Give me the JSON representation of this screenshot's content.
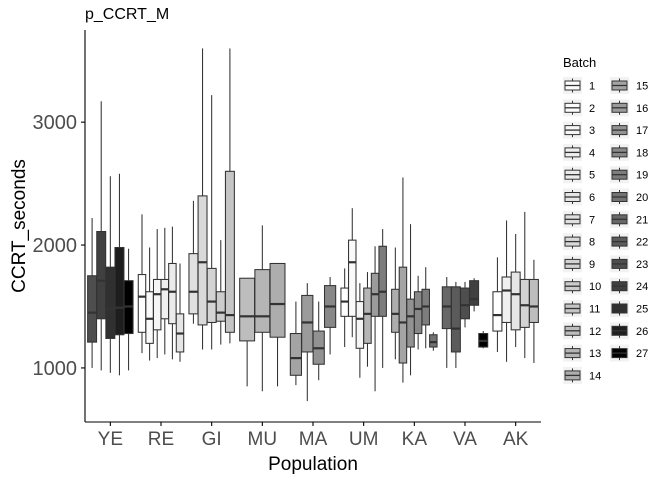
{
  "chart_data": {
    "type": "boxplot",
    "title": "p_CCRT_M",
    "xlabel": "Population",
    "ylabel": "CCRT_seconds",
    "ylim": [
      560,
      3750
    ],
    "y_ticks": [
      1000,
      2000,
      3000
    ],
    "grid": false,
    "legend_position": "right",
    "legend_title": "Batch",
    "batch_colors": {
      "1": "#ffffff",
      "2": "#fafafa",
      "3": "#f5f5f5",
      "4": "#f0f0f0",
      "5": "#ebebeb",
      "6": "#e5e5e5",
      "7": "#e0e0e0",
      "8": "#d9d9d9",
      "9": "#d3d3d3",
      "10": "#cccccc",
      "11": "#c5c5c5",
      "12": "#bdbdbd",
      "13": "#b5b5b5",
      "14": "#adadad",
      "15": "#a4a4a4",
      "16": "#9b9b9b",
      "17": "#929292",
      "18": "#888888",
      "19": "#7d7d7d",
      "20": "#727272",
      "21": "#676767",
      "22": "#5b5b5b",
      "23": "#4e4e4e",
      "24": "#404040",
      "25": "#303030",
      "26": "#1e1e1e",
      "27": "#000000"
    },
    "categories": [
      "YE",
      "RE",
      "GI",
      "MU",
      "MA",
      "UM",
      "KA",
      "VA",
      "AK"
    ],
    "groups": [
      {
        "population": "YE",
        "boxes": [
          {
            "batch": "23",
            "min": 1000,
            "q1": 1210,
            "median": 1450,
            "q3": 1750,
            "max": 2220
          },
          {
            "batch": "24",
            "min": 980,
            "q1": 1400,
            "median": 1710,
            "q3": 2110,
            "max": 3170
          },
          {
            "batch": "25",
            "min": 960,
            "q1": 1240,
            "median": 1480,
            "q3": 1820,
            "max": 2560
          },
          {
            "batch": "26",
            "min": 940,
            "q1": 1270,
            "median": 1490,
            "q3": 1980,
            "max": 2580
          },
          {
            "batch": "27",
            "min": 980,
            "q1": 1280,
            "median": 1500,
            "q3": 1710,
            "max": 1970
          }
        ]
      },
      {
        "population": "RE",
        "boxes": [
          {
            "batch": "1",
            "min": 1120,
            "q1": 1290,
            "median": 1580,
            "q3": 1760,
            "max": 2250
          },
          {
            "batch": "2",
            "min": 1060,
            "q1": 1200,
            "median": 1400,
            "q3": 1620,
            "max": 1980
          },
          {
            "batch": "3",
            "min": 1080,
            "q1": 1310,
            "median": 1600,
            "q3": 1720,
            "max": 2130
          },
          {
            "batch": "4",
            "min": 1110,
            "q1": 1400,
            "median": 1640,
            "q3": 1720,
            "max": 2140
          },
          {
            "batch": "5",
            "min": 1070,
            "q1": 1360,
            "median": 1620,
            "q3": 1850,
            "max": 2150
          },
          {
            "batch": "6",
            "min": 1050,
            "q1": 1130,
            "median": 1280,
            "q3": 1440,
            "max": 1850
          }
        ]
      },
      {
        "population": "GI",
        "boxes": [
          {
            "batch": "7",
            "min": 1360,
            "q1": 1440,
            "median": 1620,
            "q3": 1930,
            "max": 2360
          },
          {
            "batch": "8",
            "min": 1150,
            "q1": 1350,
            "median": 1860,
            "q3": 2400,
            "max": 3600
          },
          {
            "batch": "9",
            "min": 1150,
            "q1": 1370,
            "median": 1540,
            "q3": 1810,
            "max": 3220
          },
          {
            "batch": "10",
            "min": 1190,
            "q1": 1380,
            "median": 1450,
            "q3": 1620,
            "max": 2040
          },
          {
            "batch": "11",
            "min": 1200,
            "q1": 1290,
            "median": 1430,
            "q3": 2600,
            "max": 3600
          }
        ]
      },
      {
        "population": "MU",
        "boxes": [
          {
            "batch": "12",
            "min": 850,
            "q1": 1220,
            "median": 1420,
            "q3": 1730,
            "max": 1730
          },
          {
            "batch": "13",
            "min": 810,
            "q1": 1290,
            "median": 1420,
            "q3": 1800,
            "max": 2160
          },
          {
            "batch": "14",
            "min": 850,
            "q1": 1250,
            "median": 1520,
            "q3": 1850,
            "max": 1850
          }
        ]
      },
      {
        "population": "MA",
        "boxes": [
          {
            "batch": "15",
            "min": 860,
            "q1": 940,
            "median": 1080,
            "q3": 1280,
            "max": 1540
          },
          {
            "batch": "16",
            "min": 730,
            "q1": 1130,
            "median": 1370,
            "q3": 1590,
            "max": 1690
          },
          {
            "batch": "17",
            "min": 900,
            "q1": 1030,
            "median": 1160,
            "q3": 1300,
            "max": 1540
          },
          {
            "batch": "18",
            "min": 1110,
            "q1": 1330,
            "median": 1500,
            "q3": 1670,
            "max": 1740
          }
        ]
      },
      {
        "population": "UM",
        "boxes": [
          {
            "batch": "1",
            "min": 1170,
            "q1": 1420,
            "median": 1540,
            "q3": 1650,
            "max": 1810
          },
          {
            "batch": "2",
            "min": 1250,
            "q1": 1420,
            "median": 1860,
            "q3": 2040,
            "max": 2300
          },
          {
            "batch": "3",
            "min": 920,
            "q1": 1160,
            "median": 1400,
            "q3": 1540,
            "max": 1690
          },
          {
            "batch": "13",
            "min": 1010,
            "q1": 1200,
            "median": 1440,
            "q3": 1650,
            "max": 1780
          },
          {
            "batch": "16",
            "min": 810,
            "q1": 1420,
            "median": 1600,
            "q3": 1770,
            "max": 1990
          },
          {
            "batch": "19",
            "min": 1000,
            "q1": 1420,
            "median": 1620,
            "q3": 1990,
            "max": 2130
          }
        ]
      },
      {
        "population": "KA",
        "boxes": [
          {
            "batch": "14",
            "min": 1070,
            "q1": 1290,
            "median": 1440,
            "q3": 1640,
            "max": 1980
          },
          {
            "batch": "15",
            "min": 880,
            "q1": 1040,
            "median": 1370,
            "q3": 1820,
            "max": 2550
          },
          {
            "batch": "17",
            "min": 940,
            "q1": 1170,
            "median": 1420,
            "q3": 1560,
            "max": 2170
          },
          {
            "batch": "18",
            "min": 1150,
            "q1": 1280,
            "median": 1480,
            "q3": 1620,
            "max": 1750
          },
          {
            "batch": "19",
            "min": 1160,
            "q1": 1350,
            "median": 1500,
            "q3": 1640,
            "max": 1820
          },
          {
            "batch": "20",
            "min": 1140,
            "q1": 1170,
            "median": 1210,
            "q3": 1270,
            "max": 1290
          }
        ]
      },
      {
        "population": "VA",
        "boxes": [
          {
            "batch": "21",
            "min": 1000,
            "q1": 1320,
            "median": 1500,
            "q3": 1660,
            "max": 1740
          },
          {
            "batch": "22",
            "min": 1000,
            "q1": 1130,
            "median": 1320,
            "q3": 1660,
            "max": 1700
          },
          {
            "batch": "23",
            "min": 1330,
            "q1": 1400,
            "median": 1510,
            "q3": 1650,
            "max": 1700
          },
          {
            "batch": "24",
            "min": 1460,
            "q1": 1510,
            "median": 1560,
            "q3": 1710,
            "max": 1730
          },
          {
            "batch": "27",
            "min": 1160,
            "q1": 1170,
            "median": 1220,
            "q3": 1280,
            "max": 1300
          }
        ]
      },
      {
        "population": "AK",
        "boxes": [
          {
            "batch": "1",
            "min": 1130,
            "q1": 1300,
            "median": 1430,
            "q3": 1620,
            "max": 1900
          },
          {
            "batch": "4",
            "min": 1050,
            "q1": 1370,
            "median": 1630,
            "q3": 1740,
            "max": 2200
          },
          {
            "batch": "6",
            "min": 1170,
            "q1": 1310,
            "median": 1600,
            "q3": 1780,
            "max": 2090
          },
          {
            "batch": "9",
            "min": 1080,
            "q1": 1330,
            "median": 1510,
            "q3": 1720,
            "max": 2270
          },
          {
            "batch": "12",
            "min": 1040,
            "q1": 1370,
            "median": 1500,
            "q3": 1720,
            "max": 1880
          }
        ]
      }
    ]
  }
}
